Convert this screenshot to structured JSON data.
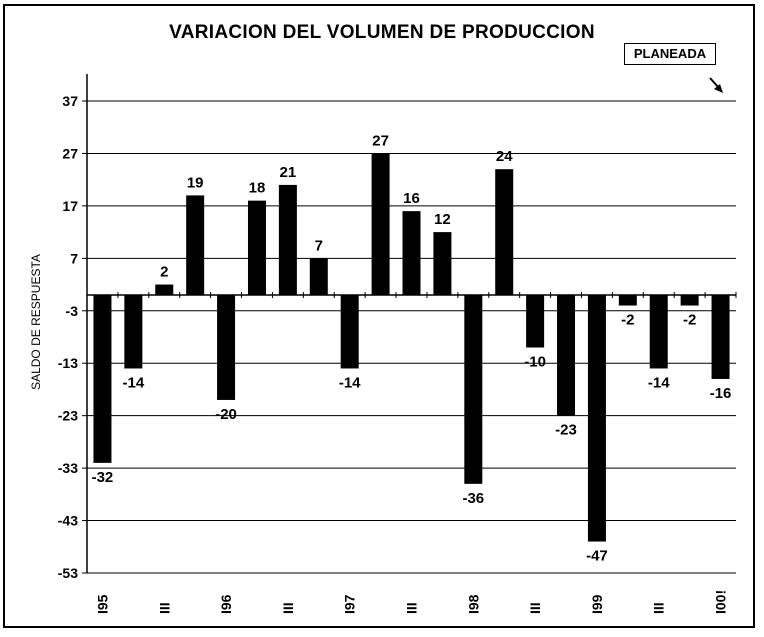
{
  "chart_data": {
    "type": "bar",
    "title": "VARIACION DEL VOLUMEN DE PRODUCCION",
    "annotation": "PLANEADA",
    "ylabel": "SALDO DE RESPUESTA",
    "xlabel": "",
    "ylim": [
      -53,
      37
    ],
    "yticks": [
      "37",
      "27",
      "17",
      "7",
      "-3",
      "-13",
      "-23",
      "-33",
      "-43",
      "-53"
    ],
    "values": [
      -32,
      -14,
      2,
      19,
      -20,
      18,
      21,
      7,
      -14,
      27,
      16,
      12,
      -36,
      24,
      -10,
      -23,
      -47,
      -2,
      -14,
      -2,
      -16
    ],
    "value_labels": [
      "-32",
      "-14",
      "2",
      "19",
      "-20",
      "18",
      "21",
      "7",
      "-14",
      "27",
      "16",
      "12",
      "-36",
      "24",
      "-10",
      "-23",
      "-47",
      "-2",
      "-14",
      "-2",
      "-16"
    ],
    "x_tick_labels": [
      {
        "bar": 0,
        "label": "I95"
      },
      {
        "bar": 2,
        "label": "III"
      },
      {
        "bar": 4,
        "label": "I96"
      },
      {
        "bar": 6,
        "label": "III"
      },
      {
        "bar": 8,
        "label": "I97"
      },
      {
        "bar": 10,
        "label": "III"
      },
      {
        "bar": 12,
        "label": "I98"
      },
      {
        "bar": 14,
        "label": "III"
      },
      {
        "bar": 16,
        "label": "I99"
      },
      {
        "bar": 18,
        "label": "III"
      },
      {
        "bar": 20,
        "label": "I00!"
      }
    ],
    "grid": true,
    "bar_color": "#000000"
  }
}
